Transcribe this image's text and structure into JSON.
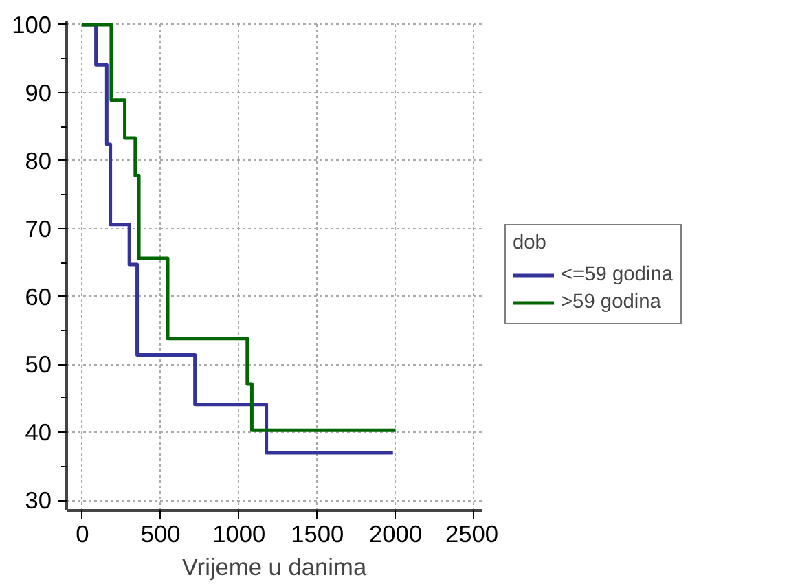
{
  "chart_data": {
    "type": "step",
    "xlabel": "Vrijeme u danima",
    "legend_title": "dob",
    "legend": "right",
    "grid": true,
    "xlim": [
      -100,
      2550
    ],
    "xticks": [
      0,
      500,
      1000,
      1500,
      2000,
      2500
    ],
    "ylim": [
      28.5,
      100.5
    ],
    "yticks": [
      30,
      40,
      50,
      60,
      70,
      80,
      90,
      100
    ],
    "series": [
      {
        "name": "<=59 godina",
        "color": "#333399",
        "x": [
          0,
          87,
          156,
          179,
          300,
          350,
          719,
          1175,
          1983
        ],
        "values": [
          100,
          94.1,
          82.4,
          70.6,
          64.7,
          51.4,
          44.1,
          37,
          37
        ]
      },
      {
        "name": ">59 godina",
        "color": "#006600",
        "x": [
          0,
          185,
          271,
          338,
          361,
          545,
          1053,
          1082,
          2000
        ],
        "values": [
          100,
          88.9,
          83.3,
          77.8,
          65.6,
          53.8,
          47.1,
          40.3,
          40.3
        ]
      }
    ]
  }
}
